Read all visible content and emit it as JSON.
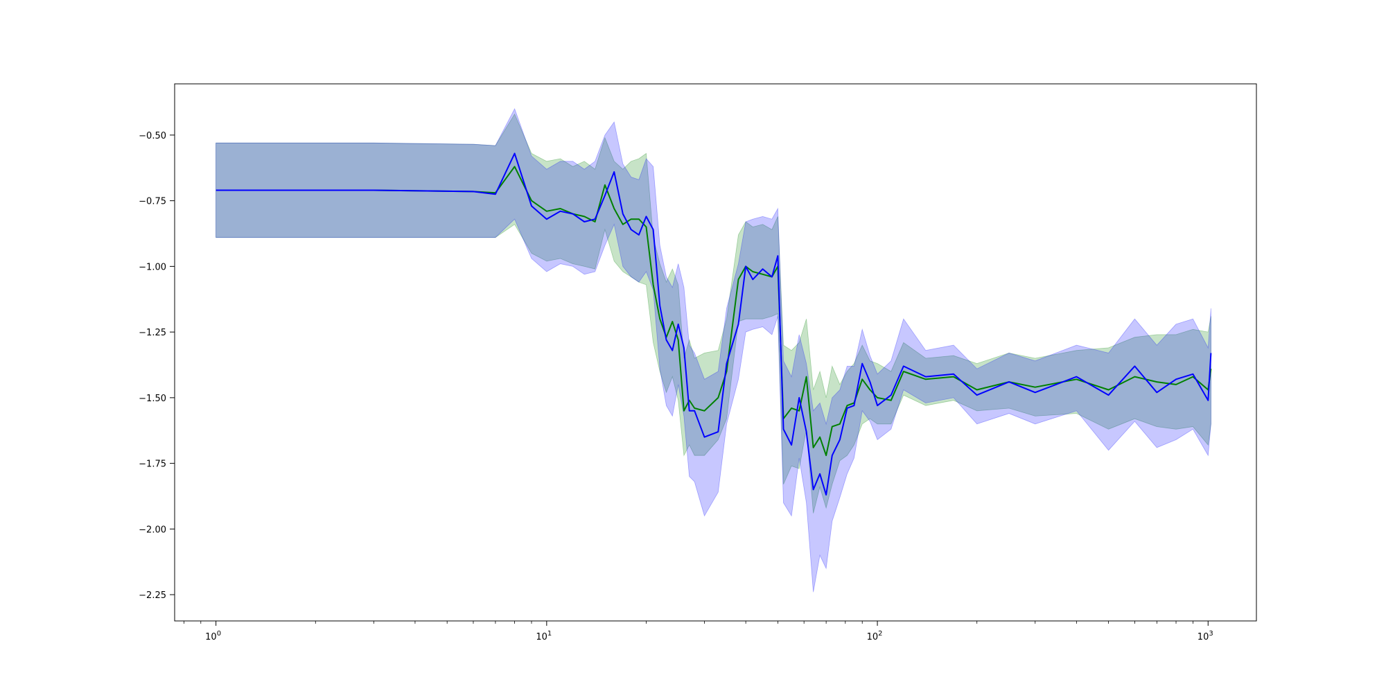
{
  "chart_data": {
    "type": "line",
    "title": "",
    "xlabel": "",
    "ylabel": "",
    "x_scale": "log",
    "xlim": [
      0.75,
      1400
    ],
    "ylim": [
      -2.35,
      -0.305
    ],
    "grid": false,
    "legend": "none",
    "x_ticks": [
      {
        "value": 1,
        "label": "10^0"
      },
      {
        "value": 10,
        "label": "10^1"
      },
      {
        "value": 100,
        "label": "10^2"
      },
      {
        "value": 1000,
        "label": "10^3"
      }
    ],
    "y_ticks": [
      {
        "value": -0.5,
        "label": "−0.50"
      },
      {
        "value": -0.75,
        "label": "−0.75"
      },
      {
        "value": -1.0,
        "label": "−1.00"
      },
      {
        "value": -1.25,
        "label": "−1.25"
      },
      {
        "value": -1.5,
        "label": "−1.50"
      },
      {
        "value": -1.75,
        "label": "−1.75"
      },
      {
        "value": -2.0,
        "label": "−2.00"
      },
      {
        "value": -2.25,
        "label": "−2.25"
      }
    ],
    "series": [
      {
        "color": "#008000",
        "band_color": "#008000",
        "band_opacity": 0.22,
        "points": [
          [
            1,
            -0.71,
            -0.89,
            -0.53
          ],
          [
            3,
            -0.71,
            -0.89,
            -0.53
          ],
          [
            6,
            -0.715,
            -0.89,
            -0.535
          ],
          [
            7,
            -0.72,
            -0.89,
            -0.54
          ],
          [
            8,
            -0.62,
            -0.84,
            -0.42
          ],
          [
            9,
            -0.75,
            -0.95,
            -0.57
          ],
          [
            10,
            -0.79,
            -0.98,
            -0.6
          ],
          [
            11,
            -0.78,
            -0.97,
            -0.59
          ],
          [
            12,
            -0.8,
            -0.99,
            -0.62
          ],
          [
            13,
            -0.81,
            -1.0,
            -0.6
          ],
          [
            14,
            -0.83,
            -1.01,
            -0.63
          ],
          [
            15,
            -0.69,
            -0.86,
            -0.51
          ],
          [
            16,
            -0.78,
            -0.98,
            -0.6
          ],
          [
            17,
            -0.84,
            -1.02,
            -0.63
          ],
          [
            18,
            -0.82,
            -1.04,
            -0.6
          ],
          [
            19,
            -0.82,
            -1.06,
            -0.59
          ],
          [
            20,
            -0.85,
            -1.07,
            -0.57
          ],
          [
            21,
            -1.07,
            -1.29,
            -0.89
          ],
          [
            22,
            -1.2,
            -1.4,
            -0.99
          ],
          [
            23,
            -1.27,
            -1.48,
            -1.06
          ],
          [
            24,
            -1.21,
            -1.42,
            -1.01
          ],
          [
            25,
            -1.28,
            -1.51,
            -1.07
          ],
          [
            26,
            -1.55,
            -1.72,
            -1.35
          ],
          [
            27,
            -1.51,
            -1.68,
            -1.28
          ],
          [
            28,
            -1.54,
            -1.72,
            -1.35
          ],
          [
            30,
            -1.55,
            -1.72,
            -1.33
          ],
          [
            33,
            -1.5,
            -1.66,
            -1.32
          ],
          [
            35,
            -1.4,
            -1.58,
            -1.2
          ],
          [
            38,
            -1.05,
            -1.21,
            -0.88
          ],
          [
            40,
            -1.0,
            -1.2,
            -0.83
          ],
          [
            42,
            -1.02,
            -1.2,
            -0.85
          ],
          [
            45,
            -1.03,
            -1.2,
            -0.84
          ],
          [
            48,
            -1.04,
            -1.19,
            -0.86
          ],
          [
            50,
            -1.0,
            -1.18,
            -0.81
          ],
          [
            52,
            -1.58,
            -1.83,
            -1.3
          ],
          [
            55,
            -1.54,
            -1.76,
            -1.32
          ],
          [
            58,
            -1.55,
            -1.77,
            -1.29
          ],
          [
            61,
            -1.42,
            -1.62,
            -1.2
          ],
          [
            64,
            -1.69,
            -1.94,
            -1.47
          ],
          [
            67,
            -1.65,
            -1.84,
            -1.4
          ],
          [
            70,
            -1.72,
            -1.92,
            -1.5
          ],
          [
            73,
            -1.61,
            -1.83,
            -1.38
          ],
          [
            77,
            -1.6,
            -1.74,
            -1.45
          ],
          [
            81,
            -1.53,
            -1.72,
            -1.4
          ],
          [
            85,
            -1.52,
            -1.68,
            -1.37
          ],
          [
            90,
            -1.43,
            -1.6,
            -1.3
          ],
          [
            95,
            -1.47,
            -1.58,
            -1.36
          ],
          [
            100,
            -1.5,
            -1.6,
            -1.37
          ],
          [
            110,
            -1.51,
            -1.6,
            -1.4
          ],
          [
            120,
            -1.4,
            -1.49,
            -1.29
          ],
          [
            140,
            -1.43,
            -1.53,
            -1.35
          ],
          [
            170,
            -1.42,
            -1.51,
            -1.34
          ],
          [
            200,
            -1.47,
            -1.55,
            -1.37
          ],
          [
            250,
            -1.44,
            -1.54,
            -1.33
          ],
          [
            300,
            -1.46,
            -1.57,
            -1.35
          ],
          [
            400,
            -1.43,
            -1.56,
            -1.32
          ],
          [
            500,
            -1.47,
            -1.62,
            -1.31
          ],
          [
            600,
            -1.42,
            -1.58,
            -1.27
          ],
          [
            700,
            -1.44,
            -1.61,
            -1.26
          ],
          [
            800,
            -1.45,
            -1.62,
            -1.26
          ],
          [
            900,
            -1.42,
            -1.61,
            -1.24
          ],
          [
            1000,
            -1.47,
            -1.68,
            -1.25
          ],
          [
            1020,
            -1.39,
            -1.6,
            -1.19
          ]
        ]
      },
      {
        "color": "#0000ff",
        "band_color": "#0000ff",
        "band_opacity": 0.22,
        "points": [
          [
            1,
            -0.71,
            -0.89,
            -0.53
          ],
          [
            3,
            -0.71,
            -0.89,
            -0.53
          ],
          [
            6,
            -0.715,
            -0.89,
            -0.535
          ],
          [
            7,
            -0.725,
            -0.89,
            -0.54
          ],
          [
            8,
            -0.57,
            -0.82,
            -0.4
          ],
          [
            9,
            -0.77,
            -0.97,
            -0.58
          ],
          [
            10,
            -0.82,
            -1.02,
            -0.63
          ],
          [
            11,
            -0.79,
            -0.99,
            -0.6
          ],
          [
            12,
            -0.8,
            -1.0,
            -0.6
          ],
          [
            13,
            -0.83,
            -1.03,
            -0.63
          ],
          [
            14,
            -0.82,
            -1.02,
            -0.6
          ],
          [
            15,
            -0.73,
            -0.92,
            -0.5
          ],
          [
            16,
            -0.64,
            -0.84,
            -0.45
          ],
          [
            17,
            -0.8,
            -1.0,
            -0.61
          ],
          [
            18,
            -0.86,
            -1.04,
            -0.66
          ],
          [
            19,
            -0.88,
            -1.06,
            -0.67
          ],
          [
            20,
            -0.81,
            -1.02,
            -0.59
          ],
          [
            21,
            -0.86,
            -1.09,
            -0.62
          ],
          [
            22,
            -1.15,
            -1.39,
            -0.92
          ],
          [
            23,
            -1.28,
            -1.53,
            -1.04
          ],
          [
            24,
            -1.32,
            -1.57,
            -1.08
          ],
          [
            25,
            -1.22,
            -1.45,
            -0.99
          ],
          [
            26,
            -1.31,
            -1.57,
            -1.08
          ],
          [
            27,
            -1.55,
            -1.8,
            -1.3
          ],
          [
            28,
            -1.55,
            -1.82,
            -1.33
          ],
          [
            30,
            -1.65,
            -1.95,
            -1.43
          ],
          [
            33,
            -1.63,
            -1.86,
            -1.4
          ],
          [
            35,
            -1.37,
            -1.6,
            -1.16
          ],
          [
            38,
            -1.22,
            -1.43,
            -0.99
          ],
          [
            40,
            -1.0,
            -1.25,
            -0.83
          ],
          [
            42,
            -1.05,
            -1.24,
            -0.82
          ],
          [
            45,
            -1.01,
            -1.23,
            -0.81
          ],
          [
            48,
            -1.04,
            -1.26,
            -0.82
          ],
          [
            50,
            -0.96,
            -1.19,
            -0.78
          ],
          [
            52,
            -1.62,
            -1.9,
            -1.36
          ],
          [
            55,
            -1.68,
            -1.95,
            -1.42
          ],
          [
            58,
            -1.5,
            -1.73,
            -1.26
          ],
          [
            61,
            -1.63,
            -1.9,
            -1.37
          ],
          [
            64,
            -1.85,
            -2.24,
            -1.55
          ],
          [
            67,
            -1.79,
            -2.1,
            -1.52
          ],
          [
            70,
            -1.87,
            -2.15,
            -1.6
          ],
          [
            73,
            -1.72,
            -1.97,
            -1.5
          ],
          [
            77,
            -1.66,
            -1.88,
            -1.47
          ],
          [
            81,
            -1.54,
            -1.79,
            -1.38
          ],
          [
            85,
            -1.53,
            -1.73,
            -1.38
          ],
          [
            90,
            -1.37,
            -1.55,
            -1.24
          ],
          [
            95,
            -1.44,
            -1.59,
            -1.34
          ],
          [
            100,
            -1.53,
            -1.66,
            -1.41
          ],
          [
            110,
            -1.49,
            -1.62,
            -1.36
          ],
          [
            120,
            -1.38,
            -1.47,
            -1.2
          ],
          [
            140,
            -1.42,
            -1.52,
            -1.32
          ],
          [
            170,
            -1.41,
            -1.5,
            -1.3
          ],
          [
            200,
            -1.49,
            -1.6,
            -1.39
          ],
          [
            250,
            -1.44,
            -1.56,
            -1.33
          ],
          [
            300,
            -1.48,
            -1.6,
            -1.36
          ],
          [
            400,
            -1.42,
            -1.55,
            -1.3
          ],
          [
            500,
            -1.49,
            -1.7,
            -1.33
          ],
          [
            600,
            -1.38,
            -1.59,
            -1.2
          ],
          [
            700,
            -1.48,
            -1.69,
            -1.3
          ],
          [
            800,
            -1.43,
            -1.66,
            -1.22
          ],
          [
            900,
            -1.41,
            -1.62,
            -1.2
          ],
          [
            1000,
            -1.51,
            -1.72,
            -1.31
          ],
          [
            1020,
            -1.33,
            -1.6,
            -1.16
          ]
        ]
      }
    ]
  }
}
